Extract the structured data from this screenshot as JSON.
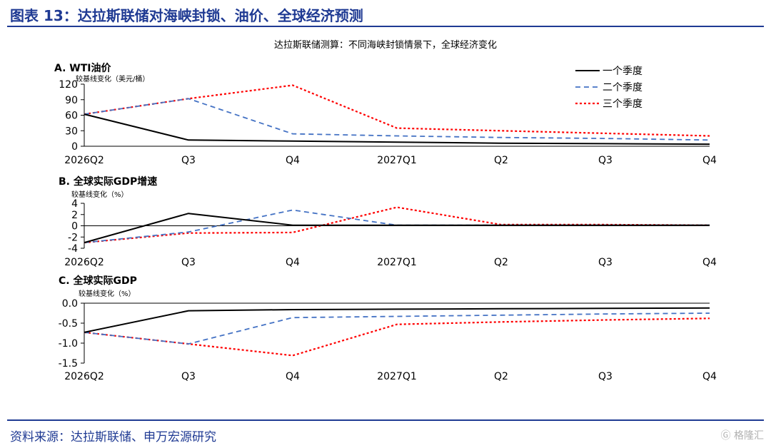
{
  "figure_title": "图表 13：达拉斯联储对海峡封锁、油价、全球经济预测",
  "subtitle": "达拉斯联储测算：不同海峡封锁情景下，全球经济变化",
  "source": "资料来源：达拉斯联储、申万宏源研究",
  "watermark": "格隆汇",
  "colors": {
    "brand": "#1f3a93",
    "s1": "#000000",
    "s2": "#4472c4",
    "s3": "#ff0000"
  },
  "legend": [
    "一个季度",
    "二个季度",
    "三个季度"
  ],
  "chart_data": [
    {
      "type": "line",
      "title": "A. WTI油价",
      "ylabel": "较基线变化（美元/桶）",
      "categories": [
        "2026Q2",
        "Q3",
        "Q4",
        "2027Q1",
        "Q2",
        "Q3",
        "Q4"
      ],
      "ylim": [
        0,
        120
      ],
      "yticks": [
        "0",
        "30",
        "60",
        "90",
        "120"
      ],
      "legend_position": "top-right",
      "series": [
        {
          "name": "一个季度",
          "values": [
            62,
            12,
            10,
            8,
            6,
            5,
            4
          ]
        },
        {
          "name": "二个季度",
          "values": [
            62,
            92,
            24,
            20,
            17,
            15,
            12
          ]
        },
        {
          "name": "三个季度",
          "values": [
            62,
            92,
            118,
            35,
            30,
            25,
            20
          ]
        }
      ]
    },
    {
      "type": "line",
      "title": "B. 全球实际GDP增速",
      "ylabel": "较基线变化（%）",
      "categories": [
        "2026Q2",
        "Q3",
        "Q4",
        "2027Q1",
        "Q2",
        "Q3",
        "Q4"
      ],
      "ylim": [
        -4,
        4
      ],
      "yticks": [
        "-4",
        "-2",
        "0",
        "2",
        "4"
      ],
      "series": [
        {
          "name": "一个季度",
          "values": [
            -3.0,
            2.2,
            0.1,
            0.1,
            0.1,
            0.1,
            0.1
          ]
        },
        {
          "name": "二个季度",
          "values": [
            -3.0,
            -1.1,
            2.8,
            0.1,
            0.1,
            0.1,
            0.1
          ]
        },
        {
          "name": "三个季度",
          "values": [
            -3.0,
            -1.3,
            -1.2,
            3.3,
            0.2,
            0.2,
            0.1
          ]
        }
      ]
    },
    {
      "type": "line",
      "title": "C. 全球实际GDP",
      "ylabel": "较基线变化（%）",
      "categories": [
        "2026Q2",
        "Q3",
        "Q4",
        "2027Q1",
        "Q2",
        "Q3",
        "Q4"
      ],
      "ylim": [
        -1.5,
        0.0
      ],
      "yticks": [
        "-1.5",
        "-1.0",
        "-0.5",
        "0.0"
      ],
      "series": [
        {
          "name": "一个季度",
          "values": [
            -0.73,
            -0.19,
            -0.16,
            -0.15,
            -0.14,
            -0.13,
            -0.12
          ]
        },
        {
          "name": "二个季度",
          "values": [
            -0.73,
            -1.02,
            -0.36,
            -0.33,
            -0.3,
            -0.27,
            -0.25
          ]
        },
        {
          "name": "三个季度",
          "values": [
            -0.73,
            -1.02,
            -1.31,
            -0.53,
            -0.47,
            -0.42,
            -0.38
          ]
        }
      ]
    }
  ]
}
